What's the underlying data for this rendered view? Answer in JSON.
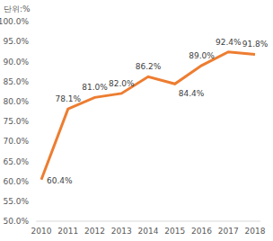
{
  "chart_data": {
    "type": "line",
    "ylabel": "단위:%",
    "categories": [
      "2010",
      "2011",
      "2012",
      "2013",
      "2014",
      "2015",
      "2016",
      "2017",
      "2018"
    ],
    "values": [
      60.4,
      78.1,
      81.0,
      82.0,
      86.2,
      84.4,
      89.0,
      92.4,
      91.8
    ],
    "value_labels": [
      "60.4%",
      "78.1%",
      "81.0%",
      "82.0%",
      "86.2%",
      "84.4%",
      "89.0%",
      "92.4%",
      "91.8%"
    ],
    "color": "#ed7d31",
    "ylim": [
      50,
      100
    ],
    "yticks": [
      {
        "value": 50,
        "label": "50.0%"
      },
      {
        "value": 55,
        "label": "55.0%"
      },
      {
        "value": 60,
        "label": "60.0%"
      },
      {
        "value": 65,
        "label": "65.0%"
      },
      {
        "value": 70,
        "label": "70.0%"
      },
      {
        "value": 75,
        "label": "75.0%"
      },
      {
        "value": 80,
        "label": "80.0%"
      },
      {
        "value": 85,
        "label": "85.0%"
      },
      {
        "value": 90,
        "label": "90.0%"
      },
      {
        "value": 95,
        "label": "95.0%"
      },
      {
        "value": 100,
        "label": "100.0%"
      }
    ],
    "grid": false,
    "data_labels": true
  }
}
